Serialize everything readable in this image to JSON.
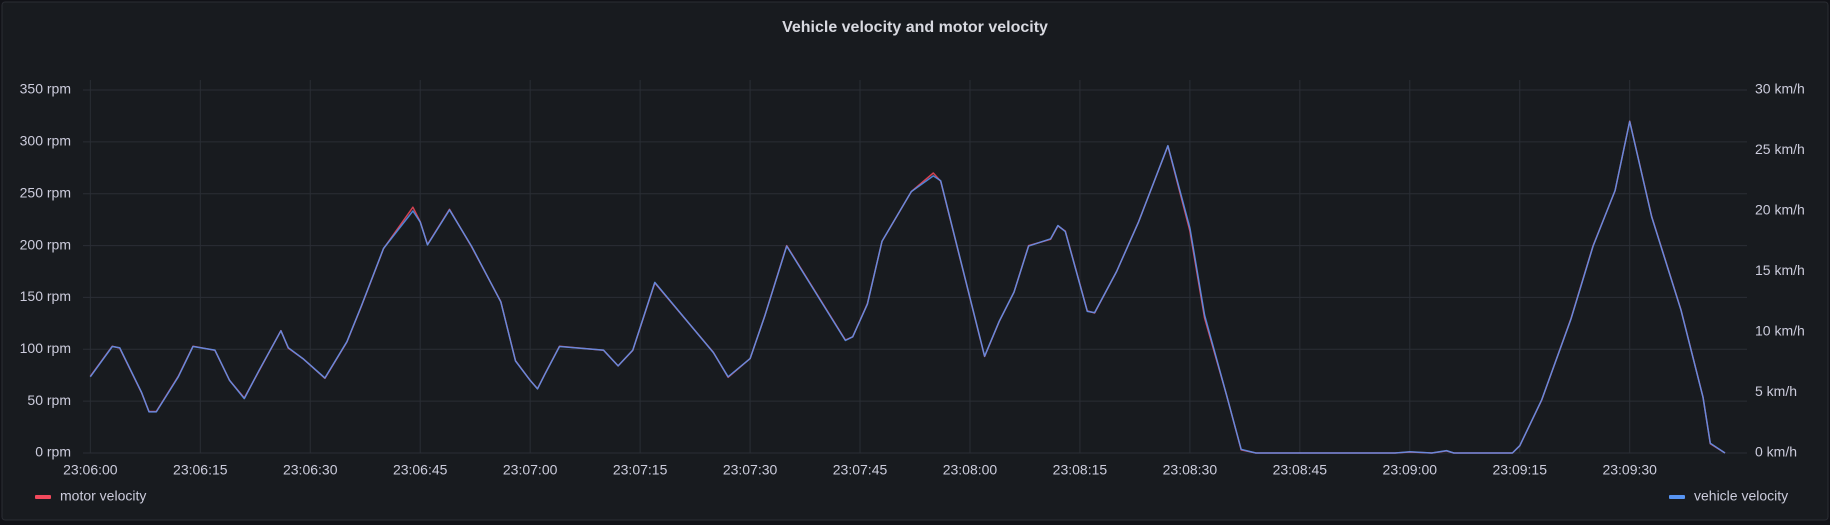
{
  "chart_data": {
    "type": "line",
    "title": "Vehicle velocity and motor velocity",
    "x": [
      "23:06:00",
      "23:06:03",
      "23:06:04",
      "23:06:07",
      "23:06:08",
      "23:06:09",
      "23:06:12",
      "23:06:14",
      "23:06:17",
      "23:06:19",
      "23:06:21",
      "23:06:23",
      "23:06:26",
      "23:06:27",
      "23:06:29",
      "23:06:32",
      "23:06:35",
      "23:06:37",
      "23:06:40",
      "23:06:44",
      "23:06:45",
      "23:06:46",
      "23:06:49",
      "23:06:52",
      "23:06:56",
      "23:06:58",
      "23:07:00",
      "23:07:01",
      "23:07:02",
      "23:07:04",
      "23:07:10",
      "23:07:12",
      "23:07:14",
      "23:07:17",
      "23:07:25",
      "23:07:27",
      "23:07:30",
      "23:07:32",
      "23:07:35",
      "23:07:43",
      "23:07:44",
      "23:07:46",
      "23:07:48",
      "23:07:52",
      "23:07:55",
      "23:07:56",
      "23:08:02",
      "23:08:04",
      "23:08:06",
      "23:08:08",
      "23:08:11",
      "23:08:12",
      "23:08:13",
      "23:08:16",
      "23:08:17",
      "23:08:20",
      "23:08:23",
      "23:08:27",
      "23:08:30",
      "23:08:32",
      "23:08:35",
      "23:08:37",
      "23:08:39",
      "23:08:58",
      "23:09:00",
      "23:09:03",
      "23:09:05",
      "23:09:06",
      "23:09:14",
      "23:09:15",
      "23:09:18",
      "23:09:22",
      "23:09:25",
      "23:09:28",
      "23:09:30",
      "23:09:33",
      "23:09:37",
      "23:09:40",
      "23:09:41",
      "23:09:43"
    ],
    "series": [
      {
        "name": "motor velocity",
        "color": "#f2495c",
        "axis": "y",
        "values": [
          74,
          103,
          101,
          58,
          40,
          40,
          74,
          103,
          99,
          70,
          53,
          79,
          118,
          101,
          91,
          72,
          107,
          142,
          197,
          237,
          223,
          201,
          235,
          199,
          146,
          89,
          70,
          62,
          76,
          103,
          99,
          84,
          99,
          164,
          97,
          73,
          91,
          132,
          200,
          109,
          112,
          144,
          204,
          252,
          270,
          262,
          93,
          127,
          155,
          200,
          206,
          219,
          214,
          137,
          135,
          175,
          223,
          296,
          214,
          130,
          56,
          3,
          0,
          0,
          1,
          0,
          2,
          0,
          0,
          7,
          51,
          130,
          200,
          253,
          320,
          228,
          138,
          54,
          9,
          0
        ]
      },
      {
        "name": "vehicle velocity",
        "color": "#5794f2",
        "axis": "y2",
        "values": [
          6.3,
          8.8,
          8.7,
          5.0,
          3.4,
          3.4,
          6.3,
          8.8,
          8.5,
          6.0,
          4.5,
          6.8,
          10.1,
          8.7,
          7.8,
          6.2,
          9.2,
          12.2,
          16.9,
          20.0,
          19.1,
          17.2,
          20.1,
          17.1,
          12.5,
          7.6,
          6.0,
          5.3,
          6.5,
          8.8,
          8.5,
          7.2,
          8.5,
          14.1,
          8.3,
          6.3,
          7.8,
          11.3,
          17.1,
          9.3,
          9.6,
          12.3,
          17.5,
          21.6,
          22.9,
          22.5,
          8.0,
          10.9,
          13.3,
          17.1,
          17.7,
          18.8,
          18.3,
          11.7,
          11.6,
          15.0,
          19.1,
          25.4,
          18.6,
          11.4,
          4.8,
          0.3,
          0,
          0,
          0.1,
          0,
          0.2,
          0,
          0,
          0.6,
          4.4,
          11.1,
          17.1,
          21.7,
          27.4,
          19.5,
          11.8,
          4.6,
          0.8,
          0
        ]
      }
    ],
    "xlim": [
      "23:05:59",
      "23:09:46"
    ],
    "xticks": [
      "23:06:00",
      "23:06:15",
      "23:06:30",
      "23:06:45",
      "23:07:00",
      "23:07:15",
      "23:07:30",
      "23:07:45",
      "23:08:00",
      "23:08:15",
      "23:08:30",
      "23:08:45",
      "23:09:00",
      "23:09:15",
      "23:09:30"
    ],
    "ylim": [
      0,
      350
    ],
    "yticks": [
      {
        "value": 0,
        "label": "0 rpm"
      },
      {
        "value": 50,
        "label": "50 rpm"
      },
      {
        "value": 100,
        "label": "100 rpm"
      },
      {
        "value": 150,
        "label": "150 rpm"
      },
      {
        "value": 200,
        "label": "200 rpm"
      },
      {
        "value": 250,
        "label": "250 rpm"
      },
      {
        "value": 300,
        "label": "300 rpm"
      },
      {
        "value": 350,
        "label": "350 rpm"
      }
    ],
    "y2lim": [
      0,
      30
    ],
    "y2ticks": [
      {
        "value": 0,
        "label": "0 km/h"
      },
      {
        "value": 5,
        "label": "5 km/h"
      },
      {
        "value": 10,
        "label": "10 km/h"
      },
      {
        "value": 15,
        "label": "15 km/h"
      },
      {
        "value": 20,
        "label": "20 km/h"
      },
      {
        "value": 25,
        "label": "25 km/h"
      },
      {
        "value": 30,
        "label": "30 km/h"
      }
    ],
    "grid": true
  }
}
